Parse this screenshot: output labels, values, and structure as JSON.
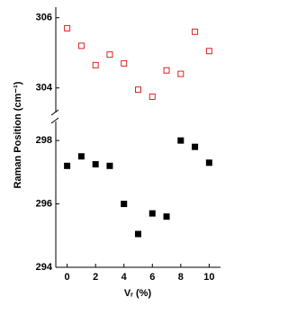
{
  "chart_data": [
    {
      "type": "scatter",
      "ylabel": "Raman Position (cm⁻¹)",
      "x": [
        0,
        1,
        2,
        3,
        4,
        5,
        6,
        7,
        8,
        9,
        10
      ],
      "series": [
        {
          "color": "#e02020",
          "marker": "open-square",
          "values": [
            305.7,
            305.2,
            304.65,
            304.95,
            304.7,
            303.95,
            303.75,
            304.5,
            304.4,
            305.6,
            305.05
          ]
        }
      ],
      "xlim": [
        -0.8,
        10.8
      ],
      "ylim": [
        303.3,
        306.3
      ],
      "yticks": [
        304,
        306
      ]
    },
    {
      "type": "scatter",
      "xlabel": "Vᵣ (%)",
      "x": [
        0,
        1,
        2,
        3,
        4,
        5,
        6,
        7,
        8,
        9,
        10
      ],
      "series": [
        {
          "color": "#000000",
          "marker": "filled-square",
          "values": [
            297.2,
            297.5,
            297.25,
            297.2,
            296.0,
            295.05,
            295.7,
            295.6,
            298.0,
            297.8,
            297.3
          ]
        }
      ],
      "xlim": [
        -0.8,
        10.8
      ],
      "ylim": [
        294,
        298.6
      ],
      "yticks": [
        294,
        296,
        298
      ],
      "xticks": [
        0,
        2,
        4,
        6,
        8,
        10
      ]
    }
  ]
}
